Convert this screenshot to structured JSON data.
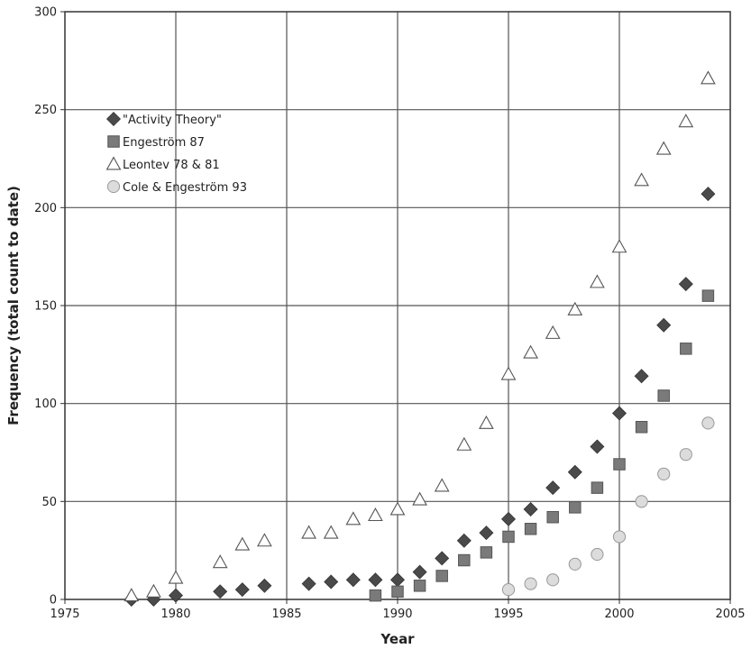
{
  "chart_data": {
    "type": "scatter",
    "title": "",
    "xlabel": "Year",
    "ylabel": "Frequency (total count to date)",
    "xlim": [
      1975,
      2005
    ],
    "ylim": [
      0,
      300
    ],
    "xticks": [
      1975,
      1980,
      1985,
      1990,
      1995,
      2000,
      2005
    ],
    "yticks": [
      0,
      50,
      100,
      150,
      200,
      250,
      300
    ],
    "grid": true,
    "legend_position": "upper-left",
    "series": [
      {
        "name": "\"Activity Theory\"",
        "marker": "diamond",
        "color": "#555555",
        "x": [
          1978,
          1979,
          1980,
          1982,
          1983,
          1984,
          1986,
          1987,
          1988,
          1989,
          1990,
          1991,
          1992,
          1993,
          1994,
          1995,
          1996,
          1997,
          1998,
          1999,
          2000,
          2001,
          2002,
          2003,
          2004
        ],
        "y": [
          0,
          0,
          2,
          4,
          5,
          7,
          8,
          9,
          10,
          10,
          10,
          14,
          21,
          30,
          34,
          41,
          46,
          57,
          65,
          78,
          95,
          114,
          140,
          161,
          207
        ]
      },
      {
        "name": "Engeström 87",
        "marker": "square",
        "color": "#777777",
        "x": [
          1989,
          1990,
          1991,
          1992,
          1993,
          1994,
          1995,
          1996,
          1997,
          1998,
          1999,
          2000,
          2001,
          2002,
          2003,
          2004
        ],
        "y": [
          2,
          4,
          7,
          12,
          20,
          24,
          32,
          36,
          42,
          47,
          57,
          69,
          88,
          104,
          128,
          155
        ]
      },
      {
        "name": "Leontev 78 & 81",
        "marker": "triangle",
        "color": "#ffffff",
        "x": [
          1978,
          1979,
          1980,
          1982,
          1983,
          1984,
          1986,
          1987,
          1988,
          1989,
          1990,
          1991,
          1992,
          1993,
          1994,
          1995,
          1996,
          1997,
          1998,
          1999,
          2000,
          2001,
          2002,
          2003,
          2004
        ],
        "y": [
          2,
          4,
          11,
          19,
          28,
          30,
          34,
          34,
          41,
          43,
          46,
          51,
          58,
          79,
          90,
          115,
          126,
          136,
          148,
          162,
          180,
          214,
          230,
          244,
          266
        ]
      },
      {
        "name": "Cole & Engeström 93",
        "marker": "circle",
        "color": "#d9d9d9",
        "x": [
          1995,
          1996,
          1997,
          1998,
          1999,
          2000,
          2001,
          2002,
          2003,
          2004
        ],
        "y": [
          5,
          8,
          10,
          18,
          23,
          32,
          50,
          64,
          74,
          90
        ]
      }
    ]
  }
}
